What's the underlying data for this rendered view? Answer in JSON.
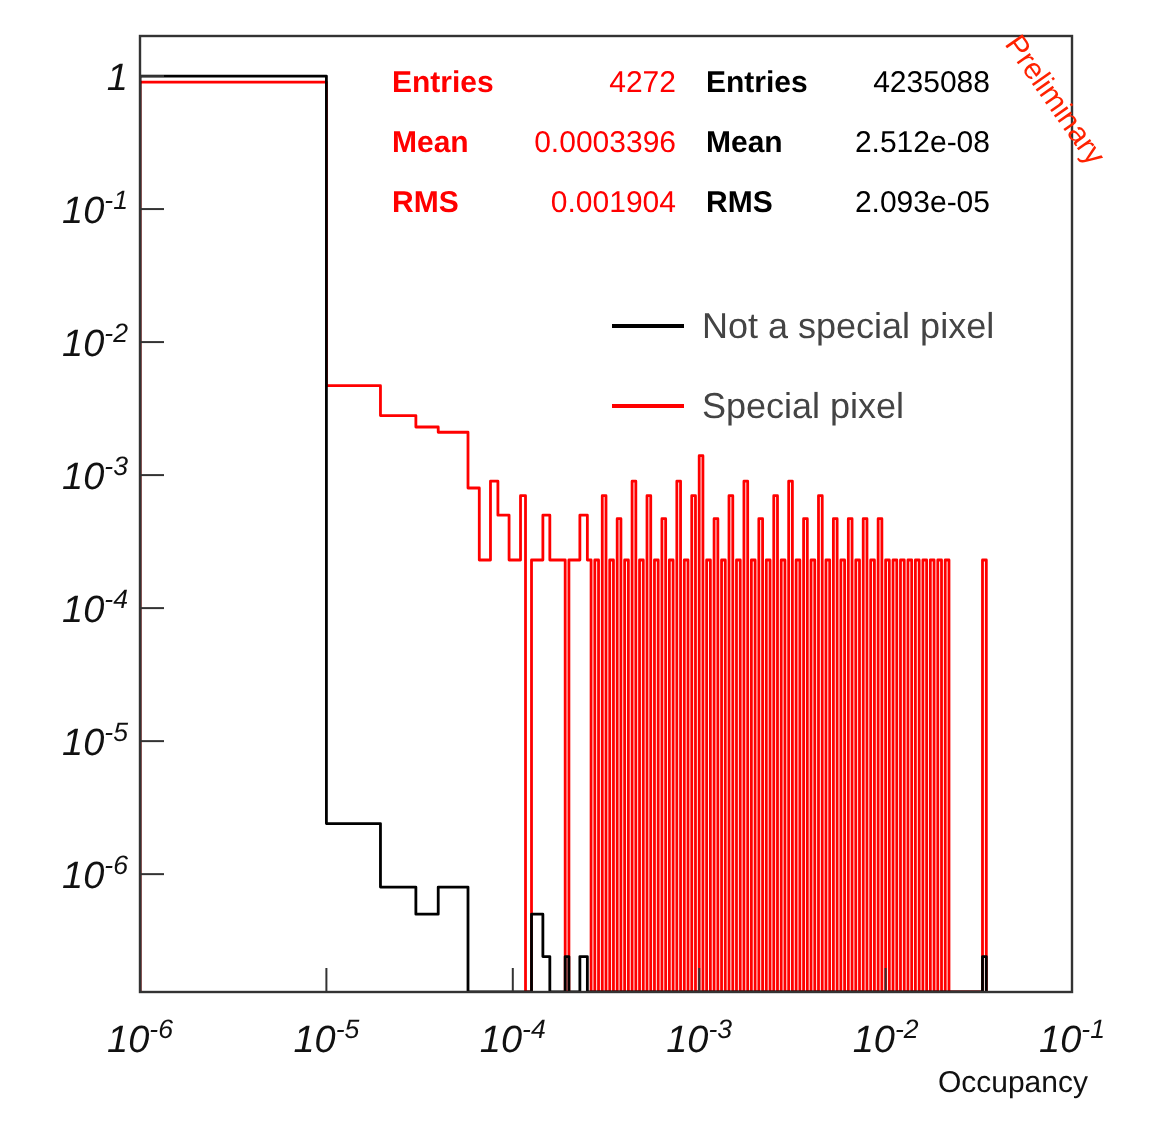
{
  "chart_data": {
    "type": "histogram",
    "xlabel": "Occupancy",
    "log": "xy",
    "legend": "top right",
    "xlim": [
      1e-06,
      0.1
    ],
    "ylim": [
      1.3e-07,
      2
    ],
    "xticks": [
      {
        "value": 1e-06,
        "label": "10$^{-6}$"
      },
      {
        "value": 1e-05,
        "label": "10$^{-5}$"
      },
      {
        "value": 0.0001,
        "label": "10$^{-4}$"
      },
      {
        "value": 0.001,
        "label": "10$^{-3}$"
      },
      {
        "value": 0.01,
        "label": "10$^{-2}$"
      },
      {
        "value": 0.1,
        "label": "10$^{-1}$"
      }
    ],
    "yticks": [
      {
        "value": 1e-06,
        "label": "10$^{-6}$"
      },
      {
        "value": 1e-05,
        "label": "10$^{-5}$"
      },
      {
        "value": 0.0001,
        "label": "10$^{-4}$"
      },
      {
        "value": 0.001,
        "label": "10$^{-3}$"
      },
      {
        "value": 0.01,
        "label": "10$^{-2}$"
      },
      {
        "value": 0.1,
        "label": "10$^{-1}$"
      },
      1
    ],
    "annotations": [
      "Entries 4272",
      "Mean 0.0003396",
      "RMS 0.001904",
      "Entries 4235088",
      "Mean 2.512e-08",
      "RMS 2.093e-05",
      "Preliminary"
    ],
    "series": [
      {
        "name": "Not a special pixel",
        "color": "#000000",
        "values": [
          1,
          2.4e-06,
          8e-07,
          5e-07,
          8e-07,
          null,
          null,
          null,
          null,
          null,
          null,
          null,
          5e-07,
          2.4e-07,
          null,
          2.4e-07,
          null,
          2.4e-07,
          null,
          null,
          null,
          null,
          null,
          null,
          null,
          null,
          null,
          null,
          null,
          null,
          null,
          null,
          null,
          null,
          null,
          null,
          null,
          null,
          null,
          null,
          null,
          null,
          null,
          null,
          null,
          null,
          null,
          null,
          null,
          null,
          null,
          null,
          null,
          null,
          null,
          null,
          null,
          null,
          null,
          null,
          null,
          null,
          null,
          null,
          null,
          null,
          null,
          null,
          null,
          null,
          null,
          null,
          null,
          null,
          null,
          null,
          null,
          null,
          null,
          null,
          null,
          null,
          null,
          null,
          null,
          null,
          null,
          null,
          null,
          null,
          null,
          null,
          null,
          null,
          null,
          null,
          null,
          null,
          null,
          null,
          null,
          null,
          null,
          null,
          null,
          null,
          null,
          null,
          null,
          null,
          null,
          null,
          null,
          null,
          null,
          null,
          null,
          2.4e-07
        ]
      },
      {
        "name": "Special pixel",
        "color": "#ff0000",
        "values": [
          0.9,
          0.0047,
          0.0028,
          0.0023,
          0.0021,
          0.0008,
          0.00023,
          0.0009,
          0.0005,
          0.00023,
          0.0007,
          null,
          0.00023,
          0.0005,
          0.00023,
          null,
          0.00023,
          0.0005,
          0.00023,
          null,
          0.00023,
          null,
          0.0007,
          null,
          0.00023,
          null,
          0.00047,
          null,
          0.00023,
          null,
          0.0009,
          null,
          0.00023,
          null,
          0.0007,
          null,
          0.00023,
          null,
          0.00047,
          null,
          0.00023,
          null,
          0.0009,
          null,
          0.00023,
          null,
          0.0007,
          null,
          0.0014,
          null,
          0.00023,
          null,
          0.00047,
          null,
          0.00023,
          null,
          0.0007,
          null,
          0.00023,
          null,
          0.0009,
          null,
          0.00023,
          null,
          0.00047,
          null,
          0.00023,
          null,
          0.0007,
          null,
          0.00023,
          null,
          0.0009,
          null,
          0.00023,
          null,
          0.00047,
          null,
          0.00023,
          null,
          0.0007,
          null,
          0.00023,
          null,
          0.00047,
          null,
          0.00023,
          null,
          0.00047,
          null,
          0.00023,
          null,
          0.00047,
          null,
          0.00023,
          null,
          0.00047,
          null,
          0.00023,
          null,
          0.00023,
          null,
          0.00023,
          null,
          0.00023,
          null,
          0.00023,
          null,
          0.00023,
          null,
          0.00023,
          null,
          0.00023,
          null,
          0.00023,
          null,
          null,
          0.00023
        ]
      }
    ],
    "bins": [
      1e-06,
      1e-05,
      1.95e-05,
      3.02e-05,
      3.98e-05,
      5.75e-05,
      6.61e-05,
      7.59e-05,
      8.32e-05,
      9.55e-05,
      0.00011,
      0.000117,
      0.000126,
      0.000145,
      0.000158,
      0.000191,
      0.0002,
      0.000229,
      0.0002512,
      0.000263,
      0.0002754,
      0.0002884,
      0.000302,
      0.0003162,
      0.0003311,
      0.0003467,
      0.0003631,
      0.0003802,
      0.0003981,
      0.0004169,
      0.0004365,
      0.0004571,
      0.0004786,
      0.0005012,
      0.0005248,
      0.0005495,
      0.0005754,
      0.0006026,
      0.000631,
      0.0006607,
      0.0006918,
      0.0007244,
      0.0007586,
      0.0007943,
      0.0008318,
      0.000871,
      0.000912,
      0.000955,
      0.001,
      0.001047,
      0.001096,
      0.001148,
      0.001202,
      0.001259,
      0.001318,
      0.00138,
      0.001445,
      0.001514,
      0.001585,
      0.00166,
      0.001738,
      0.00182,
      0.001905,
      0.001995,
      0.002089,
      0.002188,
      0.002291,
      0.002399,
      0.002512,
      0.00263,
      0.002754,
      0.002884,
      0.00302,
      0.003162,
      0.003311,
      0.003467,
      0.003631,
      0.003802,
      0.003981,
      0.004169,
      0.004365,
      0.004571,
      0.004786,
      0.005012,
      0.005248,
      0.005495,
      0.005754,
      0.006026,
      0.00631,
      0.006607,
      0.006918,
      0.007244,
      0.007586,
      0.007943,
      0.008318,
      0.00871,
      0.00912,
      0.00955,
      0.01,
      0.01047,
      0.01096,
      0.01148,
      0.01202,
      0.01259,
      0.01318,
      0.0138,
      0.01445,
      0.01514,
      0.01585,
      0.0166,
      0.01738,
      0.0182,
      0.01905,
      0.01995,
      0.02089,
      0.02188,
      0.02291,
      0.0331,
      0.0347
    ]
  }
}
